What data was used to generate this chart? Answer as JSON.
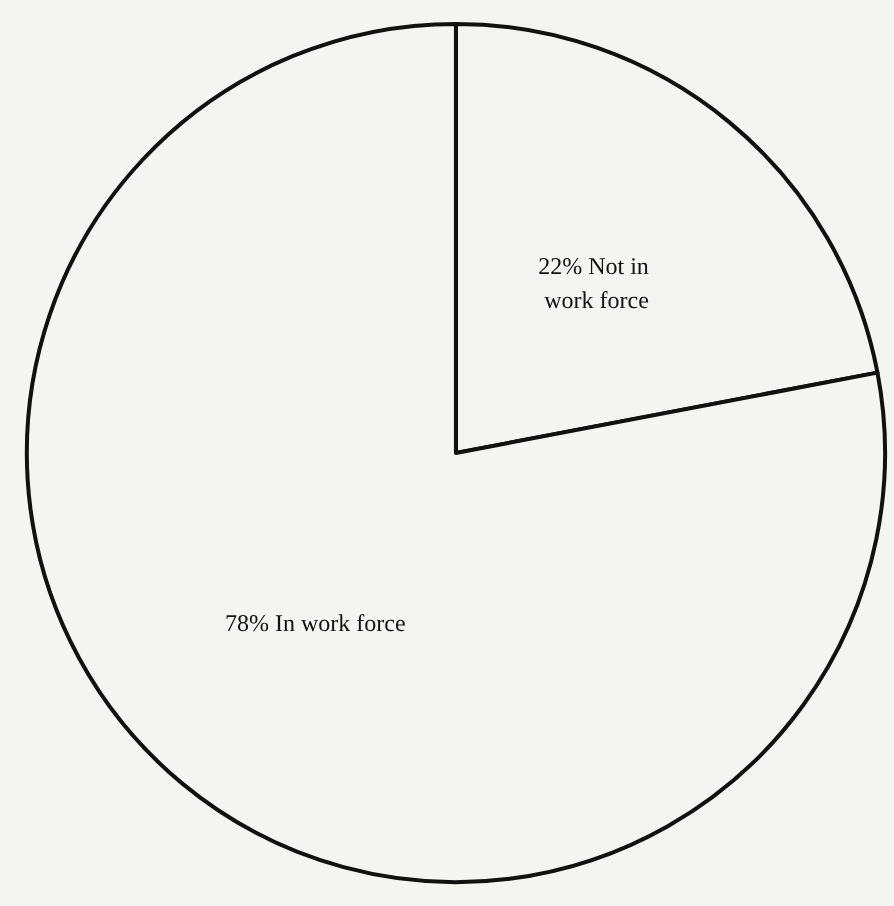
{
  "chart_data": {
    "type": "pie",
    "categories": [
      "Not in work force",
      "In work force"
    ],
    "values": [
      22,
      78
    ],
    "value_labels": [
      "22%",
      "78%"
    ],
    "colors": [
      "#f4f4f2",
      "#f4f4f2"
    ]
  }
}
